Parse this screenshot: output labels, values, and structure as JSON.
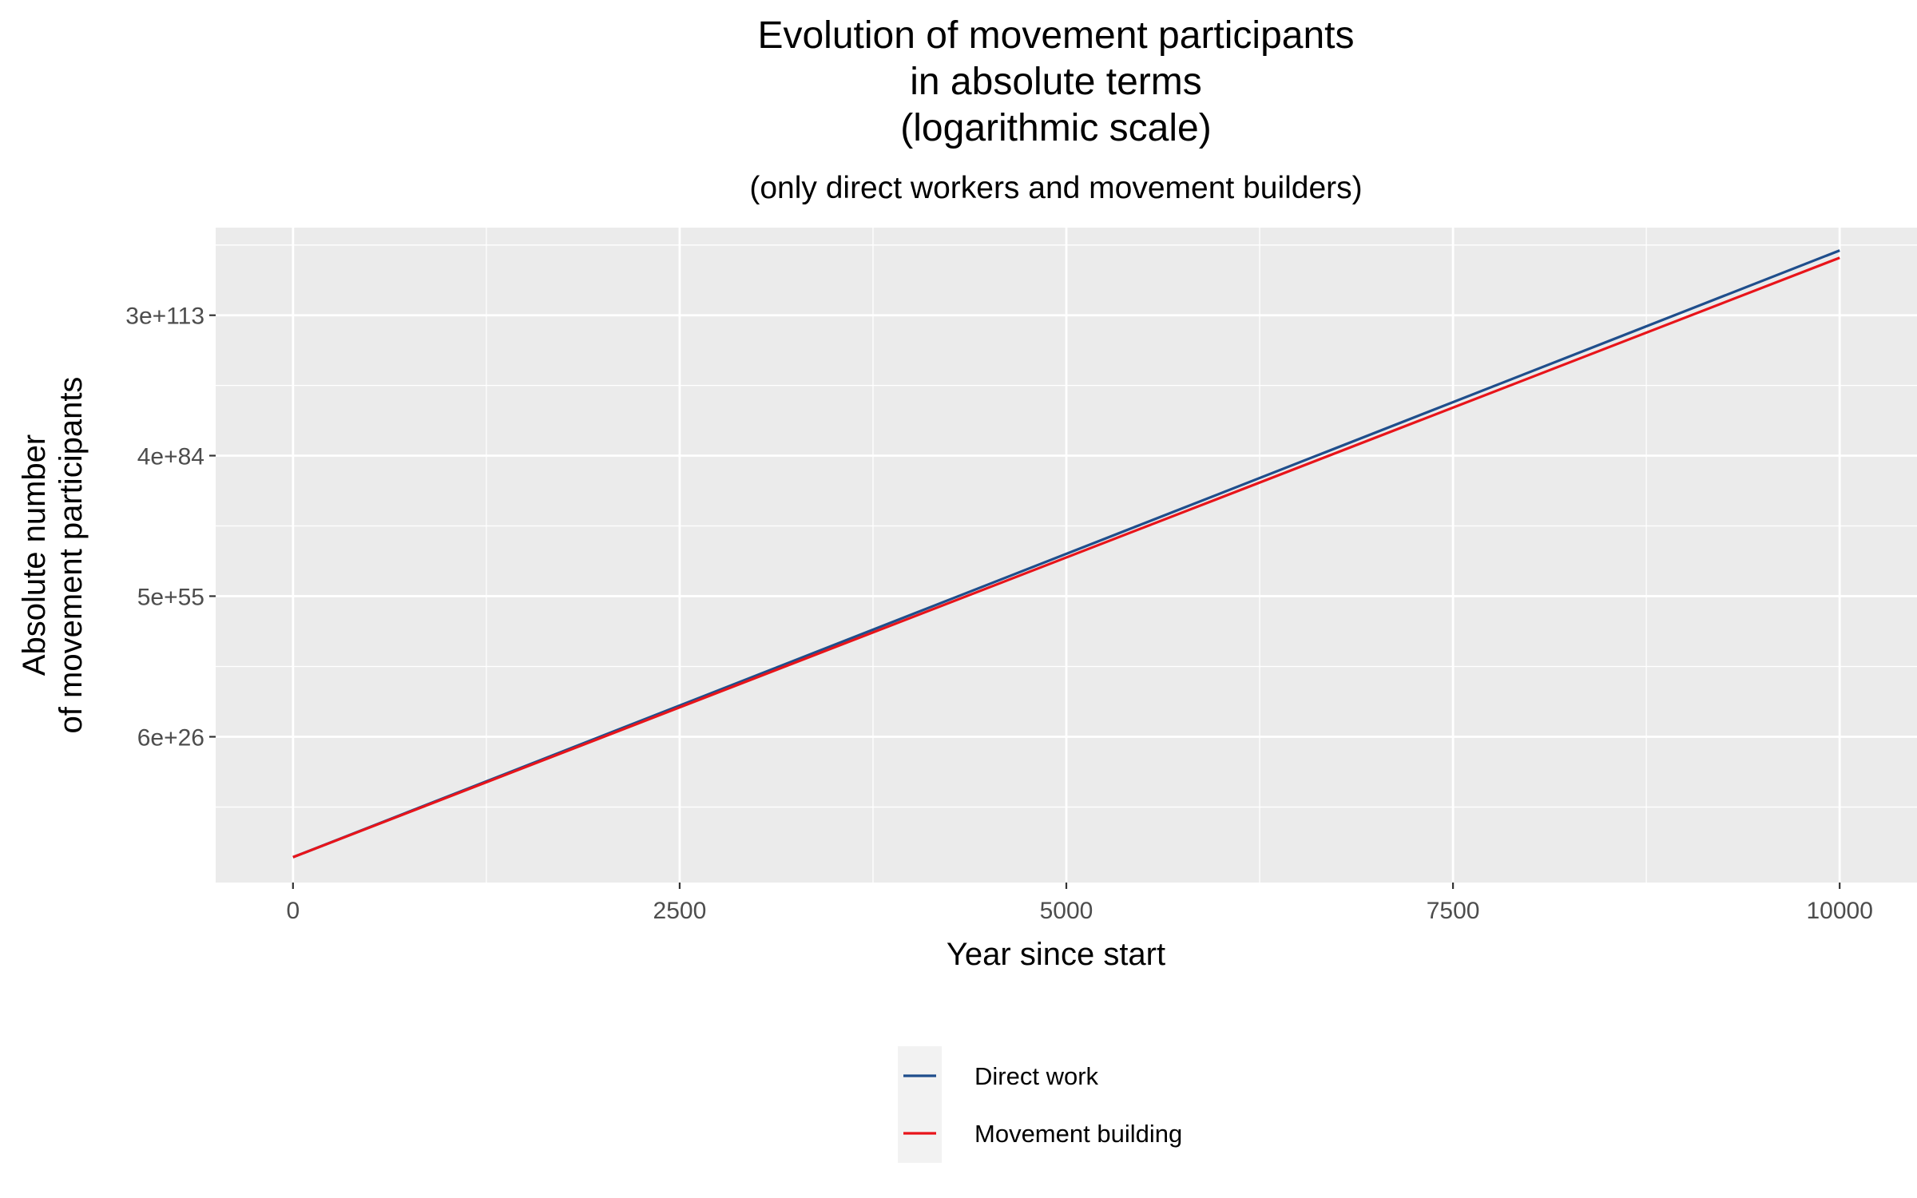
{
  "chart_data": {
    "type": "line",
    "title_lines": [
      "Evolution of movement participants",
      "in absolute terms",
      "(logarithmic scale)"
    ],
    "subtitle": "(only direct workers and movement builders)",
    "xlabel": "Year since start",
    "ylabel_lines": [
      "Absolute number",
      "of movement participants"
    ],
    "x_ticks": [
      0,
      2500,
      5000,
      7500,
      10000
    ],
    "x_tick_labels": [
      "0",
      "2500",
      "5000",
      "7500",
      "10000"
    ],
    "xlim": [
      -500,
      10500
    ],
    "y_scale": "log10",
    "y_ticks_log10": [
      26.778,
      55.699,
      84.602,
      113.477
    ],
    "y_tick_labels": [
      "6e+26",
      "5e+55",
      "4e+84",
      "3e+113"
    ],
    "ylim_log10": [
      -3.2,
      131.5
    ],
    "grid": true,
    "legend_position": "bottom",
    "series": [
      {
        "name": "Direct work",
        "color": "#1f4e8c",
        "x": [
          0,
          10000
        ],
        "y_log10": [
          2.0,
          126.8
        ]
      },
      {
        "name": "Movement building",
        "color": "#e8141a",
        "x": [
          0,
          10000
        ],
        "y_log10": [
          2.0,
          125.3
        ]
      }
    ]
  }
}
